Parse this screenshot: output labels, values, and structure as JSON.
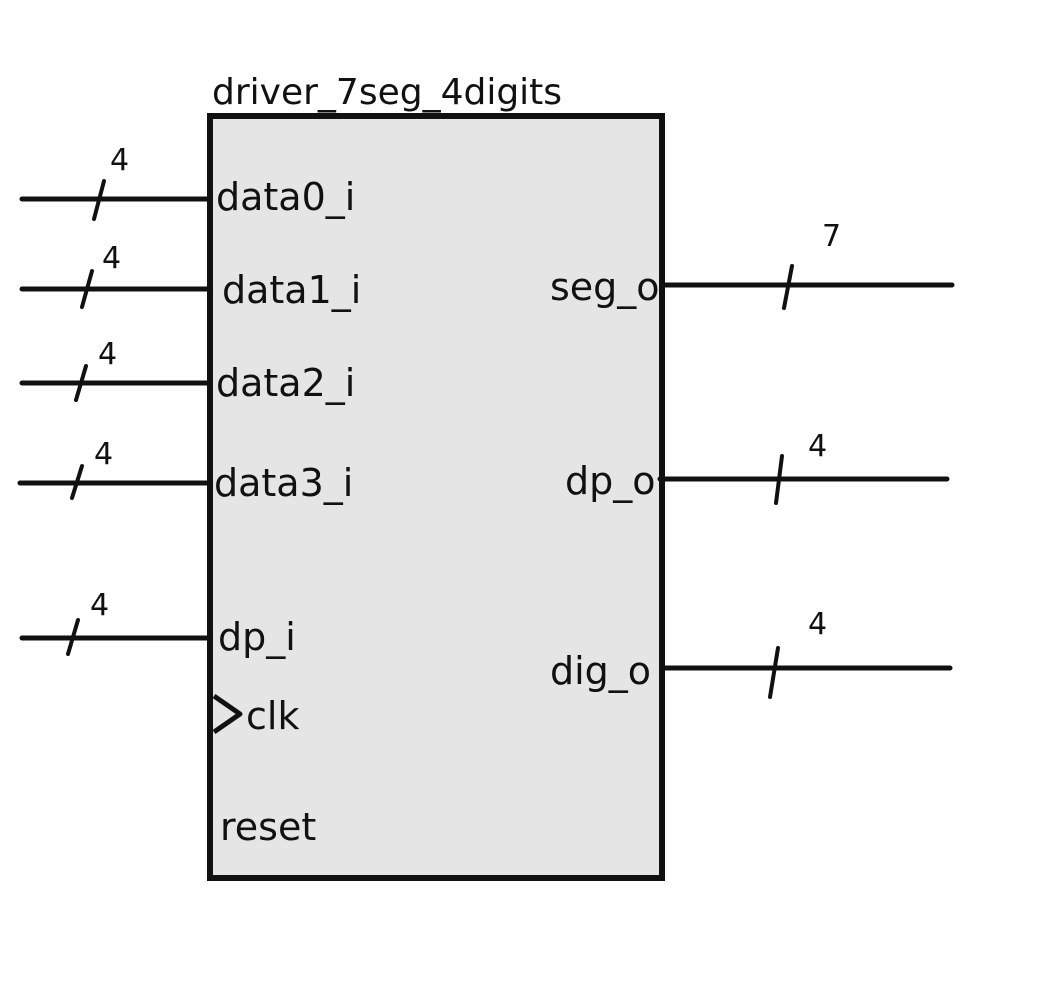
{
  "block": {
    "title": "driver_7seg_4digits",
    "fill_color": "#e5e5e5",
    "stroke_color": "#111111"
  },
  "inputs": [
    {
      "name": "data0_i",
      "width": "4"
    },
    {
      "name": "data1_i",
      "width": "4"
    },
    {
      "name": "data2_i",
      "width": "4"
    },
    {
      "name": "data3_i",
      "width": "4"
    },
    {
      "name": "dp_i",
      "width": "4"
    }
  ],
  "clock": {
    "name": "clk",
    "icon": "clock-triangle-icon"
  },
  "reset": {
    "name": "reset"
  },
  "outputs": [
    {
      "name": "seg_o",
      "width": "7"
    },
    {
      "name": "dp_o",
      "width": "4"
    },
    {
      "name": "dig_o",
      "width": "4"
    }
  ]
}
